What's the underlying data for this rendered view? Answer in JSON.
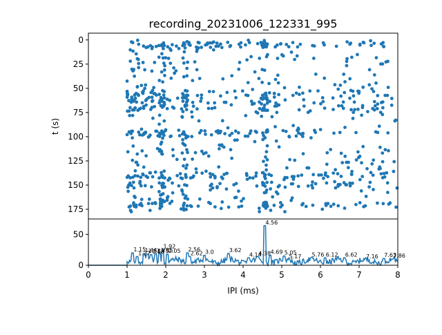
{
  "chart_data": [
    {
      "type": "scatter",
      "title": "recording_20231006_122331_995",
      "xlabel": "",
      "ylabel": "t (s)",
      "xlim": [
        0,
        8
      ],
      "ylim": [
        185,
        -7
      ],
      "y_inverted": true,
      "ytick_labels": [
        "0",
        "25",
        "50",
        "75",
        "100",
        "125",
        "150",
        "175"
      ],
      "ytick_values": [
        0,
        25,
        50,
        75,
        100,
        125,
        150,
        175
      ],
      "color": "#1f77b4",
      "marker": "dot",
      "point_x_range_ms": [
        1.0,
        8.0
      ],
      "point_t_range_s": [
        0,
        178
      ],
      "dense_t_bands_s": [
        5,
        55,
        62,
        70,
        97,
        140,
        150,
        170
      ],
      "dense_x_columns_ms": [
        4.56,
        1.9,
        2.5
      ],
      "grid": false
    },
    {
      "type": "line",
      "xlabel": "IPI (ms)",
      "ylabel": "",
      "xlim": [
        0,
        8
      ],
      "ylim": [
        0,
        75
      ],
      "xtick_labels": [
        "0",
        "1",
        "2",
        "3",
        "4",
        "5",
        "6",
        "7",
        "8"
      ],
      "xtick_values": [
        0,
        1,
        2,
        3,
        4,
        5,
        6,
        7,
        8
      ],
      "ytick_labels": [
        "0",
        "50"
      ],
      "ytick_values": [
        0,
        50
      ],
      "color": "#1f77b4",
      "grid": false,
      "peaks": [
        {
          "x": 1.15,
          "y": 20,
          "label": "1.15"
        },
        {
          "x": 1.27,
          "y": 14,
          "label": "1.27"
        },
        {
          "x": 1.44,
          "y": 19,
          "label": "1.44"
        },
        {
          "x": 1.53,
          "y": 18,
          "label": "1.53"
        },
        {
          "x": 1.63,
          "y": 17,
          "label": "1.63"
        },
        {
          "x": 1.75,
          "y": 18,
          "label": "1.75"
        },
        {
          "x": 1.85,
          "y": 19,
          "label": "1.85"
        },
        {
          "x": 1.92,
          "y": 25,
          "label": "1.92"
        },
        {
          "x": 2.05,
          "y": 18,
          "label": "2.05"
        },
        {
          "x": 2.56,
          "y": 20,
          "label": "2.56"
        },
        {
          "x": 2.62,
          "y": 14,
          "label": "2.62"
        },
        {
          "x": 3.0,
          "y": 16,
          "label": "3.0"
        },
        {
          "x": 3.62,
          "y": 19,
          "label": "3.62"
        },
        {
          "x": 4.14,
          "y": 12,
          "label": "4.14"
        },
        {
          "x": 4.38,
          "y": 14,
          "label": "4.38"
        },
        {
          "x": 4.56,
          "y": 64,
          "label": "4.56"
        },
        {
          "x": 4.69,
          "y": 16,
          "label": "4.69"
        },
        {
          "x": 5.05,
          "y": 15,
          "label": "5.05"
        },
        {
          "x": 5.17,
          "y": 9,
          "label": "5.17"
        },
        {
          "x": 5.76,
          "y": 12,
          "label": "5.76"
        },
        {
          "x": 6.12,
          "y": 12,
          "label": "6.12"
        },
        {
          "x": 6.62,
          "y": 12,
          "label": "6.62"
        },
        {
          "x": 7.16,
          "y": 9,
          "label": "7.16"
        },
        {
          "x": 7.63,
          "y": 11,
          "label": "7.63"
        },
        {
          "x": 7.86,
          "y": 10,
          "label": "7.86"
        }
      ]
    }
  ]
}
